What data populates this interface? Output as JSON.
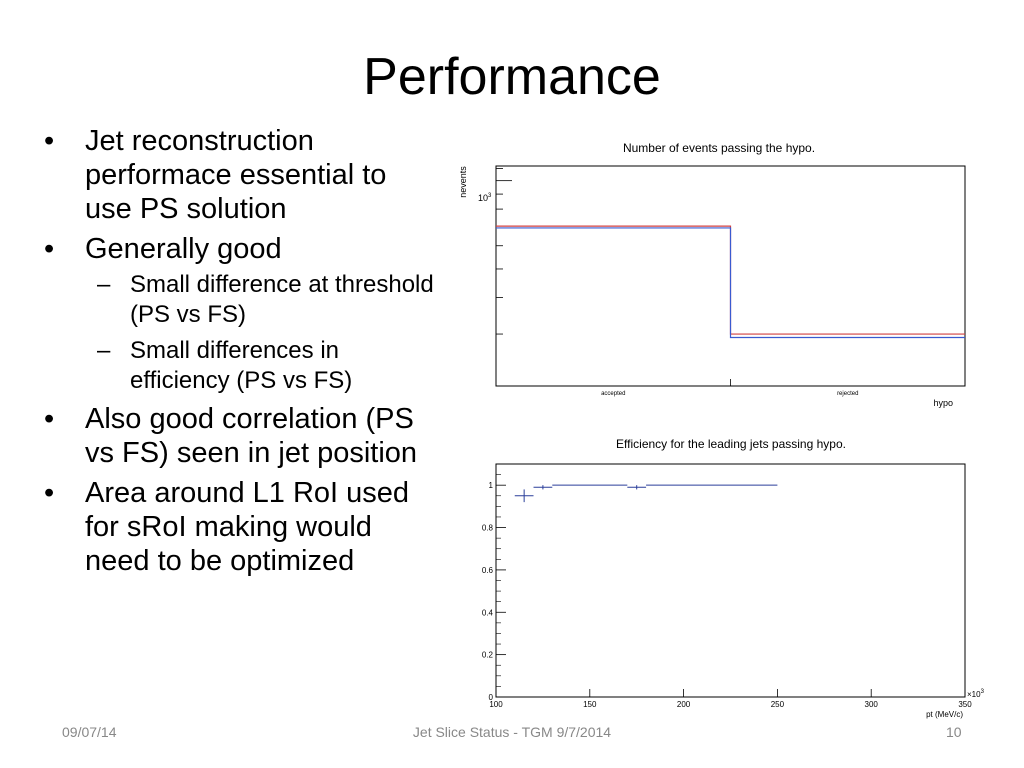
{
  "slide": {
    "title": "Performance",
    "bullet_glyph": "•",
    "sub_glyph": "–",
    "bullets": [
      {
        "text": "Jet reconstruction performace essential to use PS solution",
        "subs": []
      },
      {
        "text": "Generally good",
        "subs": [
          "Small difference at threshold (PS vs FS)",
          "Small differences in efficiency (PS vs FS)"
        ]
      },
      {
        "text": "Also good correlation (PS vs FS) seen in jet position",
        "subs": []
      },
      {
        "text": "Area around L1 RoI used for sRoI making would need to be optimized",
        "subs": []
      }
    ]
  },
  "footer": {
    "date": "09/07/14",
    "center": "Jet Slice Status - TGM 9/7/2014",
    "page": "10"
  },
  "chart_data": [
    {
      "type": "bar",
      "title": "Number of events passing the hypo.",
      "xlabel": "hypo",
      "ylabel": "nevents",
      "categories": [
        "accepted",
        "rejected"
      ],
      "log_y": true,
      "ytick_label": "10",
      "ytick_exponent": "3",
      "series": [
        {
          "color": "#d04040",
          "values": [
            700,
            300
          ]
        },
        {
          "color": "#3a5ad0",
          "values": [
            690,
            292
          ]
        }
      ]
    },
    {
      "type": "scatter",
      "title": "Efficiency for the leading jets passing hypo.",
      "xlabel": "pt (MeV/c)",
      "x_multiplier_label": "×10",
      "x_multiplier_exponent": "3",
      "xlim": [
        100,
        350
      ],
      "ylim": [
        0,
        1.1
      ],
      "xticks": [
        "100",
        "150",
        "200",
        "250",
        "300",
        "350"
      ],
      "yticks": [
        "0",
        "0.2",
        "0.4",
        "0.6",
        "0.8",
        "1"
      ],
      "color": "#2a3e9a",
      "points": [
        {
          "x": 115,
          "y": 0.95,
          "xerr": 5,
          "yerr": 0.03
        },
        {
          "x": 125,
          "y": 0.99,
          "xerr": 5,
          "yerr": 0.01
        },
        {
          "x": 150,
          "y": 1.0,
          "xerr": 20,
          "yerr": 0
        },
        {
          "x": 175,
          "y": 0.99,
          "xerr": 5,
          "yerr": 0.01
        },
        {
          "x": 215,
          "y": 1.0,
          "xerr": 35,
          "yerr": 0
        }
      ]
    }
  ]
}
